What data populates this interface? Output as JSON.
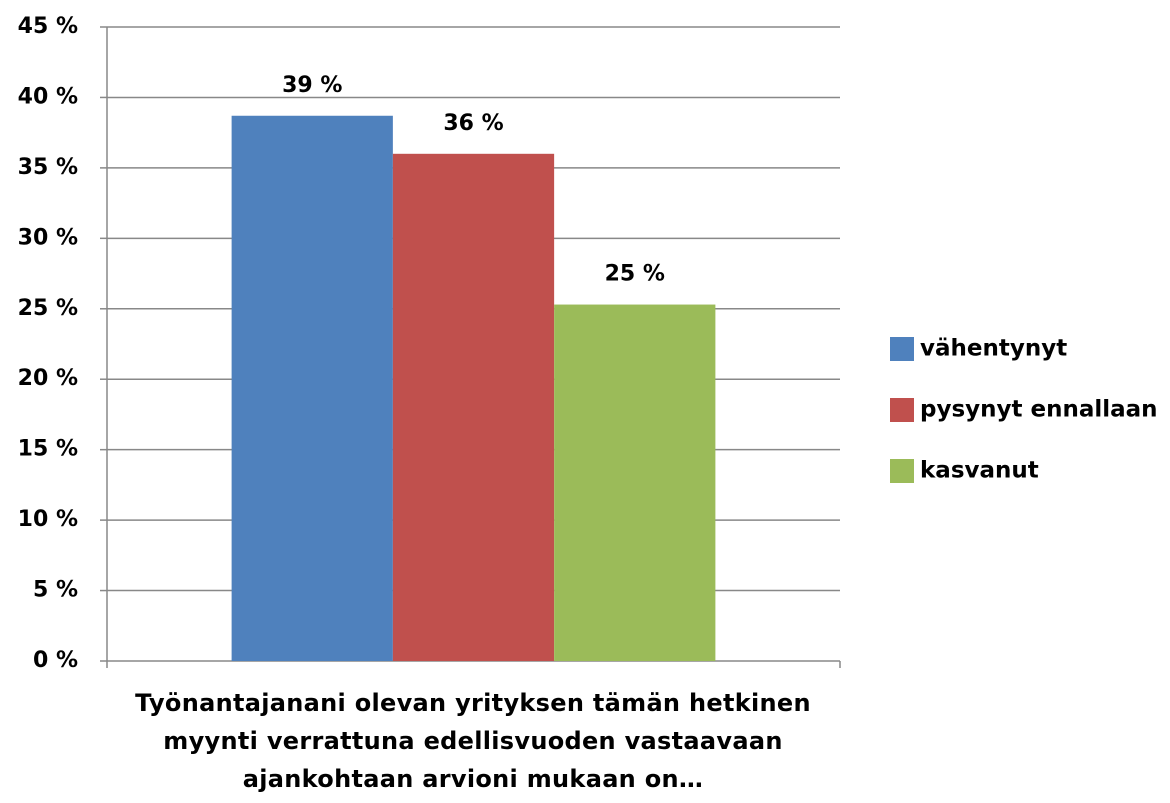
{
  "chart_data": {
    "type": "bar",
    "categories": [
      "Työnantajanani olevan yrityksen tämän hetkinen myynti verrattuna edellisvuoden vastaavaan ajankohtaan arvioni mukaan on…"
    ],
    "series": [
      {
        "name": "vähentynyt",
        "color": "#4f81bd",
        "values": [
          38.7
        ],
        "value_labels": [
          "39 %"
        ]
      },
      {
        "name": "pysynyt ennallaan",
        "color": "#c0504d",
        "values": [
          36.0
        ],
        "value_labels": [
          "36 %"
        ]
      },
      {
        "name": "kasvanut",
        "color": "#9bbb59",
        "values": [
          25.3
        ],
        "value_labels": [
          "25 %"
        ]
      }
    ],
    "ylim": [
      0,
      45
    ],
    "yticks": [
      {
        "value": 0,
        "label": "0 %"
      },
      {
        "value": 5,
        "label": "5 %"
      },
      {
        "value": 10,
        "label": "10 %"
      },
      {
        "value": 15,
        "label": "15 %"
      },
      {
        "value": 20,
        "label": "20 %"
      },
      {
        "value": 25,
        "label": "25 %"
      },
      {
        "value": 30,
        "label": "30 %"
      },
      {
        "value": 35,
        "label": "35 %"
      },
      {
        "value": 40,
        "label": "40 %"
      },
      {
        "value": 45,
        "label": "45 %"
      }
    ],
    "grid": true,
    "legend": "right"
  }
}
